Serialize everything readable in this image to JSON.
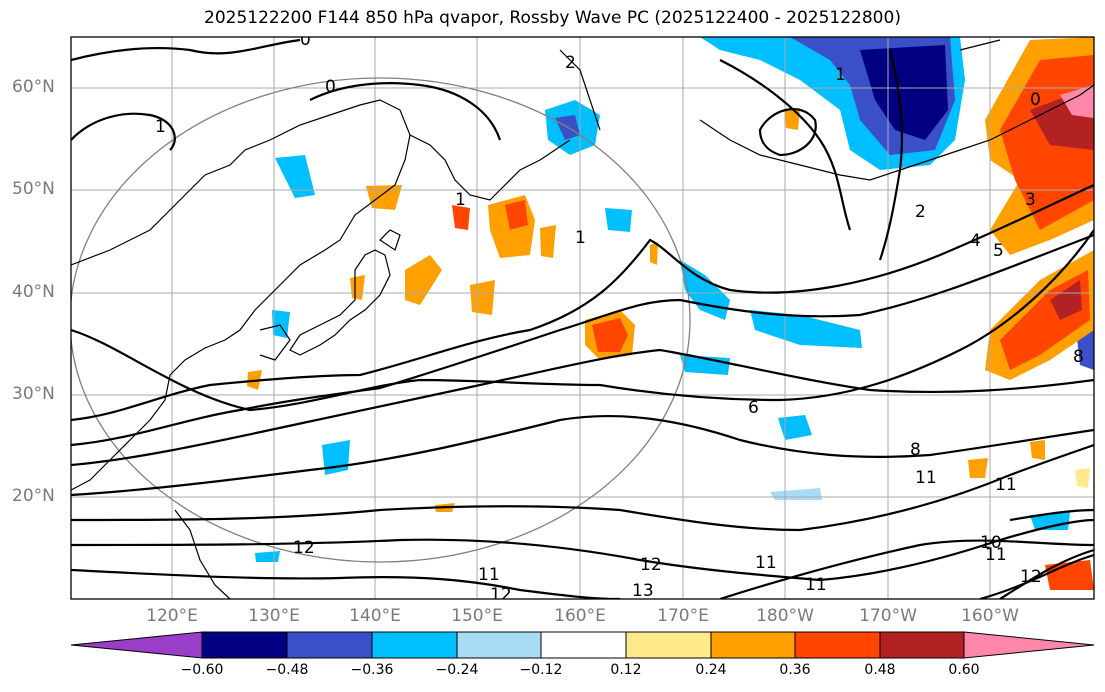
{
  "title": "2025122200 F144 850 hPa qvapor, Rossby Wave PC (2025122400 - 2025122800)",
  "map": {
    "lat_labels": [
      "60°N",
      "50°N",
      "40°N",
      "30°N",
      "20°N"
    ],
    "lon_labels": [
      "120°E",
      "130°E",
      "140°E",
      "150°E",
      "160°E",
      "170°E",
      "180°W",
      "170°W",
      "160°W"
    ],
    "contour_labels": [
      "0",
      "0",
      "0",
      "1",
      "1",
      "1",
      "1",
      "2",
      "2",
      "3",
      "4",
      "5",
      "6",
      "8",
      "8",
      "10",
      "11",
      "11",
      "11",
      "11",
      "11",
      "11",
      "12",
      "12",
      "12",
      "12",
      "13"
    ],
    "shading_colors": {
      "neg_extreme": "#9a3dc9",
      "neg_060": "#000080",
      "neg_048": "#3a50c8",
      "neg_036": "#00bfff",
      "neg_024": "#a8dcf5",
      "neutral": "#ffffff",
      "pos_012": "#ffe98a",
      "pos_024": "#ffa000",
      "pos_036": "#ff4500",
      "pos_048": "#b22222",
      "pos_060": "#ff88aa"
    }
  },
  "colorbar": {
    "ticks": [
      "−0.60",
      "−0.48",
      "−0.36",
      "−0.24",
      "−0.12",
      "0.12",
      "0.24",
      "0.36",
      "0.48",
      "0.60"
    ],
    "colors": [
      "#9a3dc9",
      "#000080",
      "#3a50c8",
      "#00bfff",
      "#a8dcf5",
      "#ffffff",
      "#ffe98a",
      "#ffa000",
      "#ff4500",
      "#b22222",
      "#ff88aa"
    ]
  }
}
